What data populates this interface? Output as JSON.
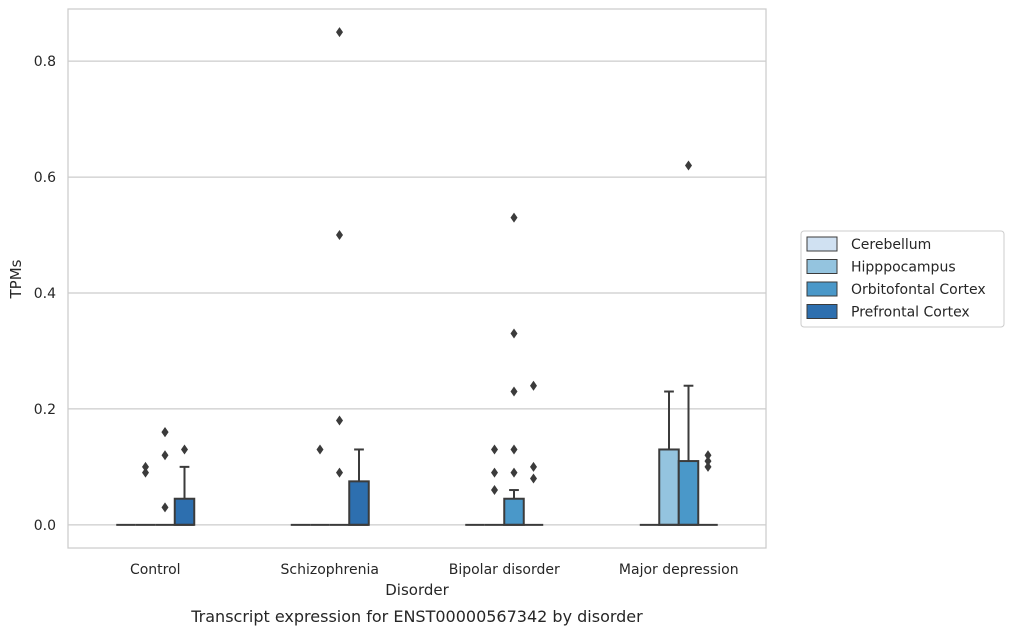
{
  "chart_data": {
    "type": "box",
    "title": "",
    "caption": "Transcript expression for ENST00000567342 by disorder",
    "xlabel": "Disorder",
    "ylabel": "TPMs",
    "ylim": [
      -0.04,
      0.89
    ],
    "yticks": [
      0.0,
      0.2,
      0.4,
      0.6,
      0.8
    ],
    "ytick_labels": [
      "0.0",
      "0.2",
      "0.4",
      "0.6",
      "0.8"
    ],
    "grid": "horizontal",
    "legend_position": "right",
    "categories": [
      "Control",
      "Schizophrenia",
      "Bipolar disorder",
      "Major depression"
    ],
    "series": [
      {
        "name": "Cerebellum",
        "color": "#d0e1f2",
        "boxes": [
          {
            "q1": 0,
            "median": 0,
            "q3": 0,
            "whisker_low": 0,
            "whisker_high": 0,
            "outliers": []
          },
          {
            "q1": 0,
            "median": 0,
            "q3": 0,
            "whisker_low": 0,
            "whisker_high": 0,
            "outliers": []
          },
          {
            "q1": 0,
            "median": 0,
            "q3": 0,
            "whisker_low": 0,
            "whisker_high": 0,
            "outliers": []
          },
          {
            "q1": 0,
            "median": 0,
            "q3": 0,
            "whisker_low": 0,
            "whisker_high": 0,
            "outliers": []
          }
        ]
      },
      {
        "name": "Hipppocampus",
        "color": "#94c4df",
        "boxes": [
          {
            "q1": 0,
            "median": 0,
            "q3": 0,
            "whisker_low": 0,
            "whisker_high": 0,
            "outliers": [
              0.09,
              0.1
            ]
          },
          {
            "q1": 0,
            "median": 0,
            "q3": 0,
            "whisker_low": 0,
            "whisker_high": 0,
            "outliers": [
              0.13
            ]
          },
          {
            "q1": 0,
            "median": 0,
            "q3": 0,
            "whisker_low": 0,
            "whisker_high": 0,
            "outliers": [
              0.06,
              0.09,
              0.13
            ]
          },
          {
            "q1": 0,
            "median": 0,
            "q3": 0.13,
            "whisker_low": 0,
            "whisker_high": 0.23,
            "outliers": []
          }
        ]
      },
      {
        "name": "Orbitofontal Cortex",
        "color": "#4a98c9",
        "boxes": [
          {
            "q1": 0,
            "median": 0,
            "q3": 0,
            "whisker_low": 0,
            "whisker_high": 0,
            "outliers": [
              0.16,
              0.12,
              0.16,
              0.03
            ]
          },
          {
            "q1": 0,
            "median": 0,
            "q3": 0,
            "whisker_low": 0,
            "whisker_high": 0,
            "outliers": [
              0.5,
              0.18,
              0.85,
              0.09
            ]
          },
          {
            "q1": 0,
            "median": 0,
            "q3": 0.045,
            "whisker_low": 0,
            "whisker_high": 0.06,
            "outliers": [
              0.33,
              0.09,
              0.53,
              0.23,
              0.13
            ]
          },
          {
            "q1": 0,
            "median": 0,
            "q3": 0.11,
            "whisker_low": 0,
            "whisker_high": 0.24,
            "outliers": [
              0.62
            ]
          }
        ]
      },
      {
        "name": "Prefrontal Cortex",
        "color": "#2d6faf",
        "boxes": [
          {
            "q1": 0,
            "median": 0,
            "q3": 0.045,
            "whisker_low": 0,
            "whisker_high": 0.1,
            "outliers": [
              0.13
            ]
          },
          {
            "q1": 0,
            "median": 0,
            "q3": 0.075,
            "whisker_low": 0,
            "whisker_high": 0.13,
            "outliers": []
          },
          {
            "q1": 0,
            "median": 0,
            "q3": 0,
            "whisker_low": 0,
            "whisker_high": 0,
            "outliers": [
              0.24,
              0.1,
              0.08
            ]
          },
          {
            "q1": 0,
            "median": 0,
            "q3": 0,
            "whisker_low": 0,
            "whisker_high": 0,
            "outliers": [
              0.12,
              0.11,
              0.1
            ]
          }
        ]
      }
    ]
  }
}
